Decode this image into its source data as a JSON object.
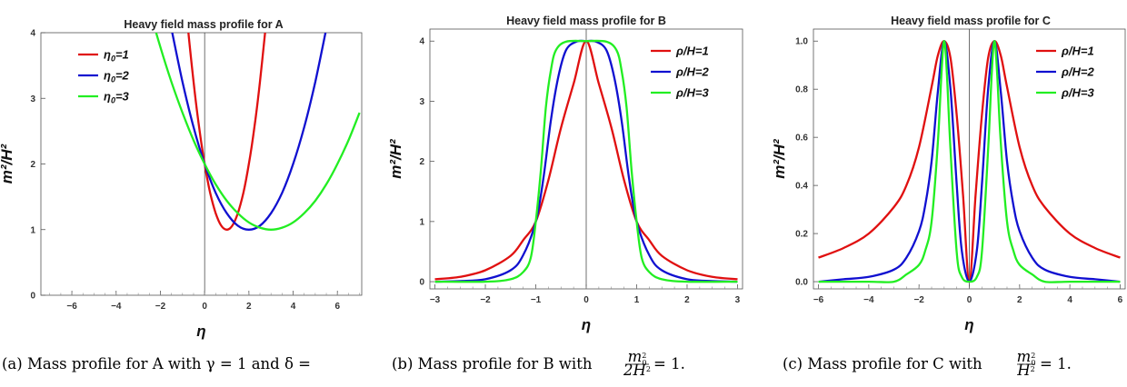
{
  "chart_data": [
    {
      "type": "line",
      "title": "Heavy field mass profile for A",
      "xlabel": "η",
      "ylabel": "m²/H²",
      "xlim": [
        -7.4,
        7.1
      ],
      "ylim": [
        0,
        4
      ],
      "x_ticks": [
        "−6",
        "−4",
        "−2",
        "0",
        "2",
        "4",
        "6"
      ],
      "y_ticks": [
        "0",
        "1",
        "2",
        "3",
        "4"
      ],
      "legend_position": "top-left",
      "series": [
        {
          "name": "η0=1",
          "color": "#e01010",
          "x": [
            -1.0,
            -0.75,
            -0.5,
            -0.25,
            0,
            0.25,
            0.5,
            0.75,
            1.0,
            1.25,
            1.5,
            1.75,
            2.0,
            2.25,
            2.5,
            2.75
          ],
          "y": [
            5.0,
            4.06,
            3.25,
            2.56,
            2.0,
            1.56,
            1.25,
            1.06,
            1.0,
            1.06,
            1.25,
            1.56,
            2.0,
            2.56,
            3.25,
            4.06
          ]
        },
        {
          "name": "η0=2",
          "color": "#1010d0",
          "x": [
            -1.5,
            -1.0,
            -0.5,
            0,
            0.5,
            1.0,
            1.5,
            2.0,
            2.5,
            3.0,
            3.5,
            4.0,
            4.5,
            5.0,
            5.5
          ],
          "y": [
            4.06,
            3.25,
            2.56,
            2.0,
            1.56,
            1.25,
            1.06,
            1.0,
            1.06,
            1.25,
            1.56,
            2.0,
            2.56,
            3.25,
            4.06
          ]
        },
        {
          "name": "η0=3",
          "color": "#22ee22",
          "x": [
            -2.5,
            -2.0,
            -1.5,
            -1.0,
            -0.5,
            0,
            0.5,
            1.0,
            1.5,
            2.0,
            2.5,
            3.0,
            3.5,
            4.0,
            4.5,
            5.0,
            5.5,
            6.0,
            6.5,
            7.0
          ],
          "y": [
            4.36,
            3.78,
            3.25,
            2.78,
            2.36,
            2.0,
            1.69,
            1.44,
            1.25,
            1.11,
            1.03,
            1.0,
            1.03,
            1.11,
            1.25,
            1.44,
            1.69,
            2.0,
            2.36,
            2.78
          ]
        }
      ]
    },
    {
      "type": "line",
      "title": "Heavy field mass profile for B",
      "xlabel": "η",
      "ylabel": "m²/H²",
      "xlim": [
        -3.1,
        3.1
      ],
      "ylim": [
        -0.12,
        4.2
      ],
      "x_ticks": [
        "−3",
        "−2",
        "−1",
        "0",
        "1",
        "2",
        "3"
      ],
      "y_ticks": [
        "0",
        "1",
        "2",
        "3",
        "4"
      ],
      "legend_position": "top-right",
      "series": [
        {
          "name": "ρ/H=1",
          "color": "#e01010",
          "x": [
            -3.0,
            -2.5,
            -2.0,
            -1.5,
            -1.25,
            -1.0,
            -0.75,
            -0.5,
            -0.25,
            0,
            0.25,
            0.5,
            0.75,
            1.0,
            1.25,
            1.5,
            2.0,
            2.5,
            3.0
          ],
          "y": [
            0.04,
            0.08,
            0.19,
            0.43,
            0.69,
            1.0,
            1.69,
            2.56,
            3.29,
            4.0,
            3.29,
            2.56,
            1.69,
            1.0,
            0.69,
            0.43,
            0.19,
            0.08,
            0.04
          ]
        },
        {
          "name": "ρ/H=2",
          "color": "#1010d0",
          "x": [
            -3.0,
            -2.5,
            -2.0,
            -1.5,
            -1.25,
            -1.0,
            -0.85,
            -0.7,
            -0.55,
            -0.4,
            -0.2,
            0,
            0.2,
            0.4,
            0.55,
            0.7,
            0.85,
            1.0,
            1.25,
            1.5,
            2.0,
            2.5,
            3.0
          ],
          "y": [
            0.0,
            0.01,
            0.04,
            0.19,
            0.44,
            1.0,
            1.71,
            2.69,
            3.42,
            3.85,
            3.99,
            4.0,
            3.99,
            3.85,
            3.42,
            2.69,
            1.71,
            1.0,
            0.44,
            0.19,
            0.04,
            0.01,
            0.0
          ]
        },
        {
          "name": "ρ/H=3",
          "color": "#22ee22",
          "x": [
            -3.0,
            -2.0,
            -1.5,
            -1.25,
            -1.1,
            -1.0,
            -0.9,
            -0.8,
            -0.7,
            -0.6,
            -0.4,
            0,
            0.4,
            0.6,
            0.7,
            0.8,
            0.9,
            1.0,
            1.1,
            1.25,
            1.5,
            2.0,
            3.0
          ],
          "y": [
            0.0,
            0.0,
            0.04,
            0.16,
            0.4,
            1.0,
            1.85,
            2.9,
            3.52,
            3.85,
            3.99,
            4.0,
            3.99,
            3.85,
            3.52,
            2.9,
            1.85,
            1.0,
            0.4,
            0.16,
            0.04,
            0.0,
            0.0
          ]
        }
      ]
    },
    {
      "type": "line",
      "title": "Heavy field mass profile for C",
      "xlabel": "η",
      "ylabel": "m²/H²",
      "xlim": [
        -6.2,
        6.2
      ],
      "ylim": [
        -0.03,
        1.05
      ],
      "x_ticks": [
        "−6",
        "−4",
        "−2",
        "0",
        "2",
        "4",
        "6"
      ],
      "y_ticks": [
        "0.0",
        "0.2",
        "0.4",
        "0.6",
        "0.8",
        "1.0"
      ],
      "legend_position": "top-right",
      "series": [
        {
          "name": "ρ/H=1",
          "color": "#e01010",
          "x": [
            -6,
            -5,
            -4,
            -3,
            -2.5,
            -2,
            -1.5,
            -1.25,
            -1,
            -0.75,
            -0.5,
            -0.25,
            0,
            0.25,
            0.5,
            0.75,
            1,
            1.25,
            1.5,
            2,
            2.5,
            3,
            4,
            5,
            6
          ],
          "y": [
            0.1,
            0.14,
            0.2,
            0.31,
            0.4,
            0.56,
            0.81,
            0.94,
            1.0,
            0.93,
            0.69,
            0.36,
            0.0,
            0.36,
            0.69,
            0.93,
            1.0,
            0.94,
            0.81,
            0.56,
            0.4,
            0.31,
            0.2,
            0.14,
            0.1
          ]
        },
        {
          "name": "ρ/H=2",
          "color": "#1010d0",
          "x": [
            -6,
            -5,
            -4,
            -3,
            -2.5,
            -2,
            -1.75,
            -1.5,
            -1.25,
            -1,
            -0.75,
            -0.5,
            -0.3,
            0,
            0.3,
            0.5,
            0.75,
            1,
            1.25,
            1.5,
            1.75,
            2,
            2.5,
            3,
            4,
            5,
            6
          ],
          "y": [
            0.0,
            0.01,
            0.02,
            0.05,
            0.1,
            0.21,
            0.32,
            0.5,
            0.79,
            1.0,
            0.8,
            0.4,
            0.13,
            0.0,
            0.13,
            0.4,
            0.8,
            1.0,
            0.79,
            0.5,
            0.32,
            0.21,
            0.1,
            0.05,
            0.02,
            0.01,
            0.0
          ]
        },
        {
          "name": "ρ/H=3",
          "color": "#22ee22",
          "x": [
            -6,
            -4,
            -3,
            -2.5,
            -2,
            -1.75,
            -1.5,
            -1.25,
            -1.1,
            -1,
            -0.9,
            -0.75,
            -0.5,
            -0.3,
            0,
            0.3,
            0.5,
            0.75,
            0.9,
            1,
            1.1,
            1.25,
            1.5,
            1.75,
            2,
            2.5,
            3,
            4,
            6
          ],
          "y": [
            0.0,
            0.0,
            0.0,
            0.03,
            0.07,
            0.13,
            0.25,
            0.58,
            0.88,
            1.0,
            0.88,
            0.55,
            0.12,
            0.02,
            0.0,
            0.02,
            0.12,
            0.55,
            0.88,
            1.0,
            0.88,
            0.58,
            0.25,
            0.13,
            0.07,
            0.03,
            0.0,
            0.0,
            0.0
          ]
        }
      ]
    }
  ],
  "captions": {
    "a": "(a)  Mass profile for A with γ = 1 and δ =",
    "b_prefix": "(b)  Mass profile for B with ",
    "b_num": "m",
    "b_den": "2H",
    "c_prefix": "(c)  Mass profile for C with ",
    "c_num": "m",
    "c_den": "H",
    "eq_one": "= 1."
  }
}
